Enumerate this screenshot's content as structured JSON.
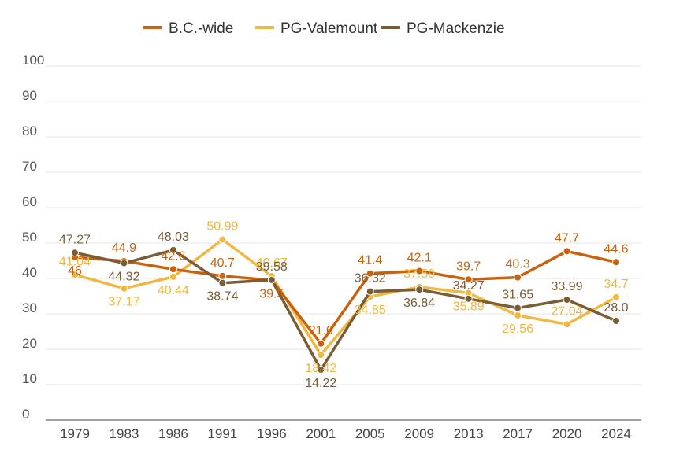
{
  "chart_data": {
    "type": "line",
    "title": "",
    "xlabel": "",
    "ylabel": "",
    "ylim": [
      0,
      100
    ],
    "yticks": [
      "0",
      "10",
      "20",
      "30",
      "40",
      "50",
      "60",
      "70",
      "80",
      "90",
      "100"
    ],
    "categories": [
      "1979",
      "1983",
      "1986",
      "1991",
      "1996",
      "2001",
      "2005",
      "2009",
      "2013",
      "2017",
      "2020",
      "2024"
    ],
    "legend_position": "top-center",
    "series": [
      {
        "name": "B.C.-wide",
        "color": "#c8620f",
        "values": [
          46,
          44.9,
          42.6,
          40.7,
          39.5,
          21.6,
          41.4,
          42.1,
          39.7,
          40.3,
          47.7,
          44.6
        ],
        "labels": [
          "46",
          "44.9",
          "42.6",
          "40.7",
          "39.5",
          "21.6",
          "41.4",
          "42.1",
          "39.7",
          "40.3",
          "47.7",
          "44.6"
        ]
      },
      {
        "name": "PG-Valemount",
        "color": "#f0b840",
        "values": [
          41.04,
          37.17,
          40.44,
          50.99,
          40.67,
          18.42,
          34.85,
          37.59,
          35.89,
          29.56,
          27.04,
          34.7
        ],
        "labels": [
          "41.04",
          "37.17",
          "40.44",
          "50.99",
          "40.67",
          "18.42",
          "34.85",
          "37.59",
          "35.89",
          "29.56",
          "27.04",
          "34.7"
        ]
      },
      {
        "name": "PG-Mackenzie",
        "color": "#7a5c35",
        "values": [
          47.27,
          44.32,
          48.03,
          38.74,
          39.58,
          14.22,
          36.32,
          36.84,
          34.27,
          31.65,
          33.99,
          28.0
        ],
        "labels": [
          "47.27",
          "44.32",
          "48.03",
          "38.74",
          "39.58",
          "14.22",
          "36.32",
          "36.84",
          "34.27",
          "31.65",
          "33.99",
          "28.0"
        ]
      }
    ]
  }
}
